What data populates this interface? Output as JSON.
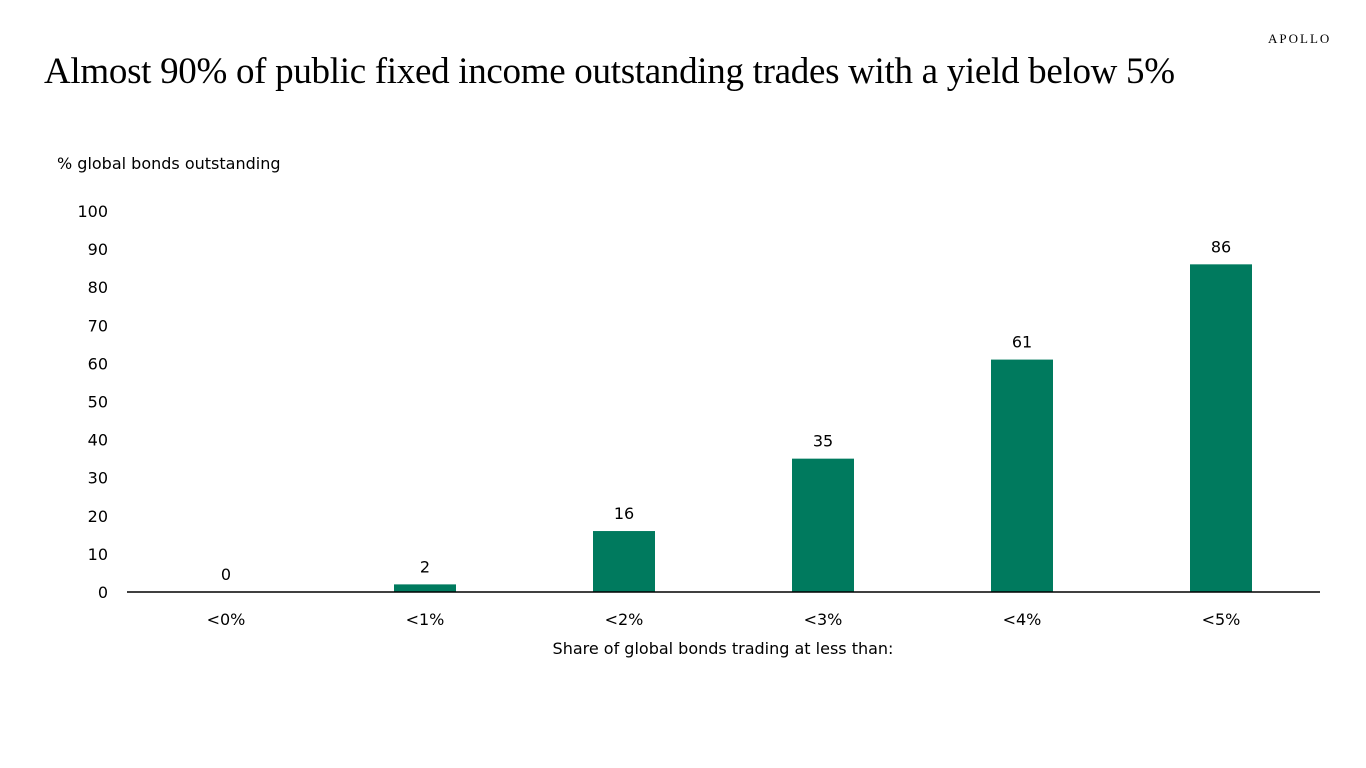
{
  "title": "Almost 90% of public fixed income outstanding trades with a yield below 5%",
  "logo": "APOLLO",
  "chart_data": {
    "type": "bar",
    "title": "Almost 90% of public fixed income outstanding trades with a yield below 5%",
    "ylabel": "% global bonds outstanding",
    "xlabel": "Share of global bonds trading at less than:",
    "categories": [
      "<0%",
      "<1%",
      "<2%",
      "<3%",
      "<4%",
      "<5%"
    ],
    "values": [
      0,
      2,
      16,
      35,
      61,
      86
    ],
    "ylim": [
      0,
      100
    ],
    "yticks": [
      0,
      10,
      20,
      30,
      40,
      50,
      60,
      70,
      80,
      90,
      100
    ],
    "grid": false,
    "data_labels": true,
    "bar_color": "#007A5E"
  }
}
